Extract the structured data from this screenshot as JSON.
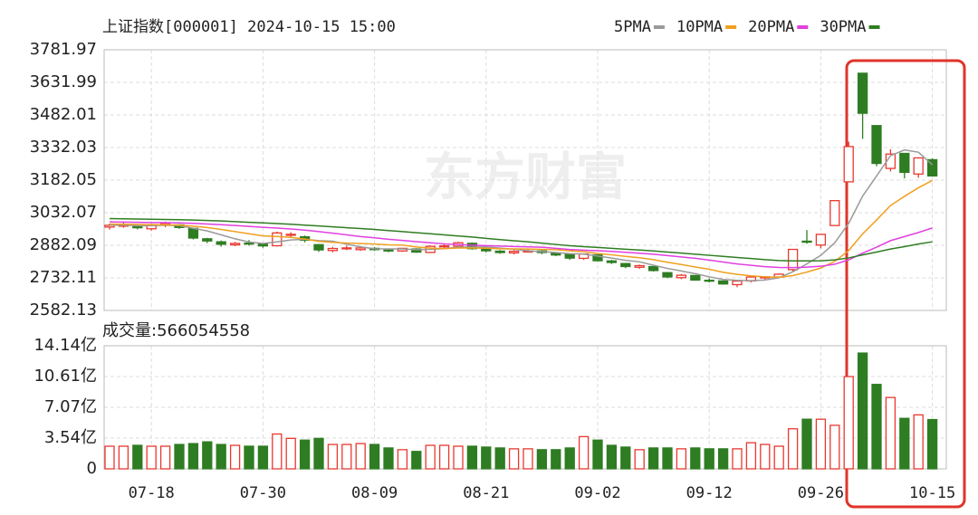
{
  "chart_data": [
    {
      "type": "candlestick",
      "title": "上证指数[000001] 2024-10-15 15:00",
      "watermark": "东方财富",
      "up_color": "#e8382f",
      "down_color": "#2f7d22",
      "open": [
        2966,
        2970,
        2968,
        2958,
        2975,
        2976,
        2960,
        2912,
        2898,
        2884,
        2892,
        2888,
        2880,
        2930,
        2921,
        2885,
        2858,
        2867,
        2862,
        2868,
        2860,
        2856,
        2865,
        2849,
        2875,
        2878,
        2891,
        2866,
        2855,
        2847,
        2854,
        2856,
        2847,
        2840,
        2822,
        2838,
        2810,
        2798,
        2781,
        2784,
        2756,
        2733,
        2743,
        2721,
        2718,
        2701,
        2718,
        2732,
        2736,
        2770,
        2901,
        2883,
        2973,
        3174,
        3674,
        3433,
        3236,
        3305,
        3210,
        3276
      ],
      "high": [
        2982,
        2990,
        2978,
        2981,
        2991,
        2980,
        2961,
        2916,
        2904,
        2897,
        2906,
        2892,
        2945,
        2942,
        2927,
        2888,
        2875,
        2880,
        2874,
        2873,
        2866,
        2870,
        2868,
        2881,
        2889,
        2898,
        2895,
        2870,
        2860,
        2860,
        2864,
        2860,
        2850,
        2841,
        2845,
        2838,
        2815,
        2801,
        2793,
        2785,
        2758,
        2750,
        2745,
        2730,
        2720,
        2722,
        2739,
        2740,
        2752,
        2863,
        2952,
        2932,
        3088,
        3359,
        3674,
        3433,
        3324,
        3307,
        3285,
        3282
      ],
      "low": [
        2955,
        2963,
        2955,
        2950,
        2965,
        2958,
        2909,
        2892,
        2876,
        2878,
        2880,
        2871,
        2876,
        2919,
        2896,
        2852,
        2850,
        2860,
        2857,
        2856,
        2850,
        2852,
        2847,
        2846,
        2870,
        2874,
        2862,
        2850,
        2843,
        2840,
        2848,
        2841,
        2832,
        2815,
        2815,
        2808,
        2796,
        2777,
        2774,
        2761,
        2730,
        2726,
        2720,
        2711,
        2701,
        2689,
        2711,
        2725,
        2734,
        2759,
        2889,
        2868,
        2973,
        3174,
        3372,
        3246,
        3222,
        3190,
        3193,
        3199
      ],
      "close": [
        2974.01,
        2976.3,
        2962.85,
        2977.13,
        2982.31,
        2964.22,
        2915.37,
        2901.95,
        2886.74,
        2890.9,
        2891.85,
        2879.3,
        2938.75,
        2932.39,
        2905.34,
        2860.7,
        2867.28,
        2869.9,
        2869.83,
        2862.19,
        2858.2,
        2867.95,
        2850.65,
        2877.36,
        2879.43,
        2893.67,
        2866.66,
        2856.58,
        2848.77,
        2854.37,
        2855.52,
        2848.73,
        2837.43,
        2823.11,
        2842.21,
        2811.04,
        2802.98,
        2784.28,
        2788.31,
        2765.81,
        2736.49,
        2744.19,
        2721.8,
        2717.12,
        2704.09,
        2717.28,
        2736.02,
        2736.81,
        2748.92,
        2863.13,
        2896.31,
        2932.39,
        3087.53,
        3336.5,
        3489.78,
        3258.86,
        3301.93,
        3217.74,
        3284.32,
        3201.29
      ],
      "series": [
        {
          "name": "5PMA",
          "color": "#9a9a9a",
          "values": [
            2975,
            2975,
            2972,
            2972,
            2974.5,
            2972.6,
            2960.4,
            2948.2,
            2930.1,
            2911.8,
            2897.4,
            2890.2,
            2897.5,
            2906.6,
            2909.5,
            2903.3,
            2900.9,
            2887.1,
            2874.6,
            2866,
            2865.5,
            2865.6,
            2861.8,
            2863.3,
            2866.7,
            2873.8,
            2873.6,
            2874.7,
            2869,
            2864,
            2856.4,
            2852.8,
            2849,
            2843.8,
            2841.4,
            2832.5,
            2823.4,
            2812.7,
            2805.8,
            2790.5,
            2775.6,
            2763.8,
            2751.3,
            2737.1,
            2724.7,
            2720.9,
            2719.3,
            2722.3,
            2732.6,
            2760.4,
            2796.2,
            2835.5,
            2893.7,
            2983.2,
            3108.5,
            3200.9,
            3294.8,
            3320.9,
            3310.5,
            3252.8
          ]
        },
        {
          "name": "10PMA",
          "color": "#f0a020",
          "values": [
            2980,
            2979,
            2978,
            2977,
            2976,
            2975,
            2970,
            2964,
            2955,
            2945,
            2935,
            2925.3,
            2922.9,
            2918.4,
            2910.7,
            2900.4,
            2895.6,
            2892.3,
            2890.6,
            2887.8,
            2884.4,
            2883.3,
            2874.5,
            2869,
            2866.4,
            2869.7,
            2869.6,
            2868.3,
            2866.2,
            2865.4,
            2865.1,
            2863.2,
            2861.9,
            2856.4,
            2852.7,
            2844.5,
            2838.1,
            2830.9,
            2824.8,
            2816,
            2804.1,
            2793.6,
            2782,
            2771.5,
            2757.6,
            2748.3,
            2741.6,
            2736.8,
            2734.9,
            2742.6,
            2758.6,
            2777.4,
            2808,
            2858,
            2934.5,
            2998.6,
            3065.2,
            3107.3,
            3146.9,
            3180.7
          ]
        },
        {
          "name": "20PMA",
          "color": "#e040e0",
          "values": [
            2990,
            2989,
            2988,
            2987,
            2986,
            2985,
            2983,
            2980,
            2977,
            2973,
            2969,
            2965,
            2961,
            2957,
            2952,
            2945,
            2938,
            2930,
            2922,
            2916.4,
            2909.7,
            2904.3,
            2898.7,
            2893.7,
            2888.6,
            2885.1,
            2882.6,
            2880.3,
            2878.4,
            2876.6,
            2874.8,
            2873.3,
            2868.2,
            2862.7,
            2859.6,
            2857.1,
            2853.9,
            2849.6,
            2845.5,
            2840.7,
            2834.6,
            2828.4,
            2822,
            2814,
            2805.2,
            2796.4,
            2789.9,
            2783.9,
            2779.9,
            2779.3,
            2781.4,
            2785.5,
            2794.9,
            2814.8,
            2846.1,
            2873.5,
            2903.4,
            2922.1,
            2940.9,
            2961.8
          ]
        },
        {
          "name": "30PMA",
          "color": "#2f7d22",
          "values": [
            3005,
            3004,
            3003,
            3002,
            3001,
            3000,
            2998,
            2996,
            2994,
            2991,
            2988,
            2985,
            2982,
            2979,
            2975,
            2971,
            2967,
            2963,
            2959,
            2955,
            2950,
            2945,
            2940,
            2935,
            2930,
            2925,
            2920,
            2914,
            2908,
            2903,
            2898,
            2892,
            2886,
            2880,
            2876,
            2872,
            2868,
            2864,
            2860,
            2856,
            2851,
            2846,
            2841,
            2836,
            2831,
            2826,
            2821,
            2816,
            2812,
            2810,
            2810,
            2811,
            2815,
            2824,
            2838,
            2851,
            2865,
            2876,
            2888,
            2898
          ]
        }
      ],
      "ylim": [
        2582.13,
        3781.97
      ],
      "yticks": [
        2582.13,
        2732.11,
        2882.09,
        3032.07,
        3182.05,
        3332.03,
        3482.01,
        3631.99,
        3781.97
      ],
      "grid": true
    },
    {
      "type": "bar",
      "title": "成交量:566054558",
      "categories": [
        null,
        null,
        null,
        "07-18",
        null,
        null,
        null,
        null,
        null,
        null,
        null,
        "07-30",
        null,
        null,
        null,
        null,
        null,
        null,
        null,
        "08-09",
        null,
        null,
        null,
        null,
        null,
        null,
        null,
        "08-21",
        null,
        null,
        null,
        null,
        null,
        null,
        null,
        "09-02",
        null,
        null,
        null,
        null,
        null,
        null,
        null,
        "09-12",
        null,
        null,
        null,
        null,
        null,
        null,
        null,
        "09-26",
        null,
        null,
        null,
        null,
        null,
        null,
        null,
        "10-15"
      ],
      "values": [
        2.6,
        2.6,
        2.7,
        2.6,
        2.6,
        2.8,
        2.9,
        3.1,
        2.8,
        2.7,
        2.6,
        2.6,
        4.0,
        3.5,
        3.3,
        3.5,
        2.8,
        2.8,
        2.9,
        2.8,
        2.4,
        2.2,
        2.0,
        2.7,
        2.7,
        2.6,
        2.6,
        2.5,
        2.4,
        2.3,
        2.3,
        2.2,
        2.2,
        2.4,
        3.7,
        3.3,
        2.7,
        2.5,
        2.2,
        2.4,
        2.4,
        2.3,
        2.4,
        2.3,
        2.3,
        2.3,
        3.0,
        2.8,
        2.6,
        4.6,
        5.7,
        5.7,
        5.0,
        10.6,
        13.3,
        9.7,
        8.2,
        5.8,
        6.2,
        5.66
      ],
      "ylim": [
        0,
        14.14
      ],
      "yticks": [
        0,
        {
          "value": 3.54,
          "label": "3.54亿"
        },
        {
          "value": 7.07,
          "label": "7.07亿"
        },
        {
          "value": 10.61,
          "label": "10.61亿"
        },
        {
          "value": 14.14,
          "label": "14.14亿"
        }
      ],
      "grid": true
    }
  ]
}
